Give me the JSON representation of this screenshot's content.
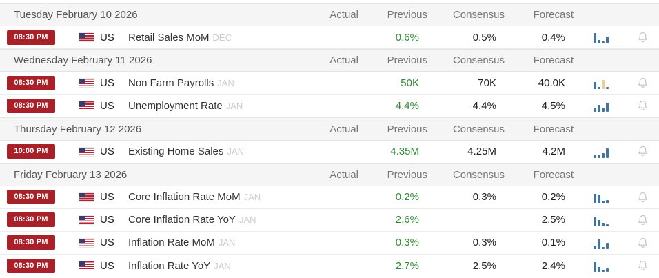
{
  "colors": {
    "badge_red": "#a92128",
    "previous_green": "#2e8b34",
    "spark_blue": "#44739e",
    "spark_tan": "#e9cf9a"
  },
  "columns": {
    "actual": "Actual",
    "previous": "Previous",
    "consensus": "Consensus",
    "forecast": "Forecast"
  },
  "sections": [
    {
      "date": "Tuesday February 10 2026",
      "rows": [
        {
          "time": "08:30 PM",
          "country": "US",
          "event": "Retail Sales MoM",
          "ref": "DEC",
          "actual": "",
          "previous": "0.6%",
          "consensus": "0.5%",
          "forecast": "0.4%",
          "spark": {
            "bars": [
              {
                "h": 9
              },
              {
                "h": 3
              },
              {
                "h": 2
              },
              {
                "h": 6
              }
            ]
          }
        }
      ]
    },
    {
      "date": "Wednesday February 11 2026",
      "rows": [
        {
          "time": "08:30 PM",
          "country": "US",
          "event": "Non Farm Payrolls",
          "ref": "JAN",
          "actual": "",
          "previous": "50K",
          "consensus": "70K",
          "forecast": "40.0K",
          "spark": {
            "bars": [
              {
                "h": 6
              },
              {
                "h": 2
              },
              {
                "h": 8,
                "c": "#e9cf9a"
              },
              {
                "h": 2
              }
            ]
          }
        },
        {
          "time": "08:30 PM",
          "country": "US",
          "event": "Unemployment Rate",
          "ref": "JAN",
          "actual": "",
          "previous": "4.4%",
          "consensus": "4.4%",
          "forecast": "4.5%",
          "spark": {
            "bars": [
              {
                "h": 3
              },
              {
                "h": 6
              },
              {
                "h": 4
              },
              {
                "h": 8
              }
            ]
          }
        }
      ]
    },
    {
      "date": "Thursday February 12 2026",
      "rows": [
        {
          "time": "10:00 PM",
          "country": "US",
          "event": "Existing Home Sales",
          "ref": "JAN",
          "actual": "",
          "previous": "4.35M",
          "consensus": "4.25M",
          "forecast": "4.2M",
          "spark": {
            "bars": [
              {
                "h": 2
              },
              {
                "h": 2
              },
              {
                "h": 4
              },
              {
                "h": 8
              }
            ]
          }
        }
      ]
    },
    {
      "date": "Friday February 13 2026",
      "rows": [
        {
          "time": "08:30 PM",
          "country": "US",
          "event": "Core Inflation Rate MoM",
          "ref": "JAN",
          "actual": "",
          "previous": "0.2%",
          "consensus": "0.3%",
          "forecast": "0.2%",
          "spark": {
            "bars": [
              {
                "h": 8
              },
              {
                "h": 7
              },
              {
                "h": 2
              },
              {
                "h": 3
              }
            ]
          }
        },
        {
          "time": "08:30 PM",
          "country": "US",
          "event": "Core Inflation Rate YoY",
          "ref": "JAN",
          "actual": "",
          "previous": "2.6%",
          "consensus": "",
          "forecast": "2.5%",
          "spark": {
            "bars": [
              {
                "h": 8
              },
              {
                "h": 5
              },
              {
                "h": 3
              },
              {
                "h": 2
              }
            ]
          }
        },
        {
          "time": "08:30 PM",
          "country": "US",
          "event": "Inflation Rate MoM",
          "ref": "JAN",
          "actual": "",
          "previous": "0.3%",
          "consensus": "0.3%",
          "forecast": "0.1%",
          "spark": {
            "bars": [
              {
                "h": 3
              },
              {
                "h": 8
              },
              {
                "h": 2
              },
              {
                "h": 5
              }
            ]
          }
        },
        {
          "time": "08:30 PM",
          "country": "US",
          "event": "Inflation Rate YoY",
          "ref": "JAN",
          "actual": "",
          "previous": "2.7%",
          "consensus": "2.5%",
          "forecast": "2.4%",
          "spark": {
            "bars": [
              {
                "h": 8
              },
              {
                "h": 4
              },
              {
                "h": 2
              },
              {
                "h": 3
              }
            ]
          }
        }
      ]
    }
  ]
}
